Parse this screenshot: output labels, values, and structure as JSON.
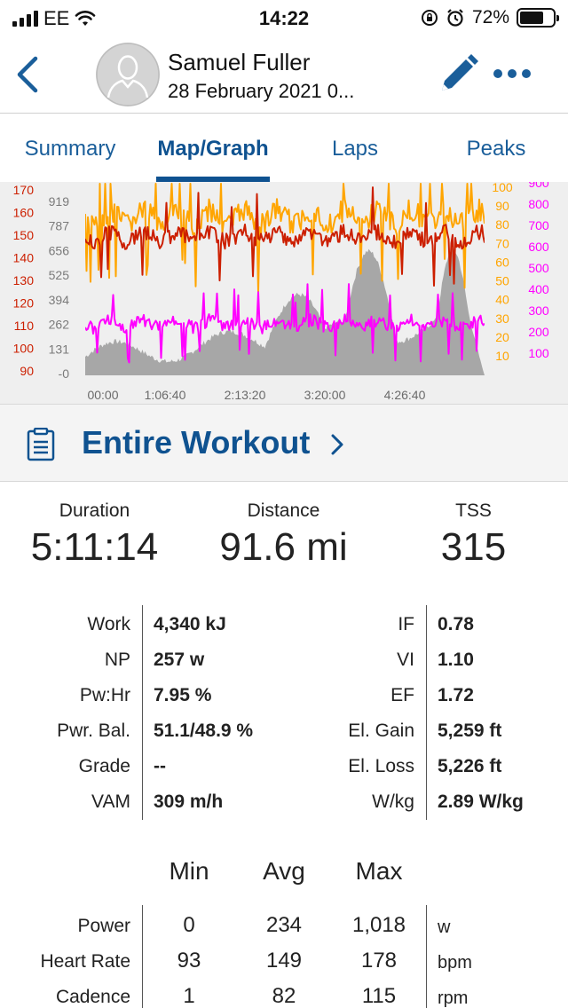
{
  "status_bar": {
    "carrier": "EE",
    "time": "14:22",
    "battery": "72%",
    "battery_level": 0.72
  },
  "header": {
    "athlete_name": "Samuel Fuller",
    "date_line": "28 February 2021   0..."
  },
  "tabs": [
    {
      "label": "Summary"
    },
    {
      "label": "Map/Graph"
    },
    {
      "label": "Laps"
    },
    {
      "label": "Peaks"
    }
  ],
  "chart": {
    "hr_axis": [
      "170",
      "160",
      "150",
      "140",
      "130",
      "120",
      "110",
      "100",
      "90"
    ],
    "elevation_axis": [
      "919",
      "787",
      "656",
      "525",
      "394",
      "262",
      "131",
      "-0"
    ],
    "cadence_axis": [
      "100",
      "90",
      "80",
      "70",
      "60",
      "50",
      "40",
      "30",
      "20",
      "10"
    ],
    "power_axis": [
      "900",
      "800",
      "700",
      "600",
      "500",
      "400",
      "300",
      "200",
      "100"
    ],
    "time_axis": [
      "00:00",
      "1:06:40",
      "2:13:20",
      "3:20:00",
      "4:26:40"
    ],
    "colors": {
      "heart_rate": "#cc1f00",
      "cadence": "#ffa500",
      "power": "#ff00ff",
      "elevation": "#9a9a9a"
    }
  },
  "section": {
    "title": "Entire Workout",
    "icon": "clipboard-icon"
  },
  "summary": [
    {
      "label": "Duration",
      "value": "5:11:14"
    },
    {
      "label": "Distance",
      "value": "91.6 mi"
    },
    {
      "label": "TSS",
      "value": "315"
    }
  ],
  "metrics": [
    {
      "l1": "Work",
      "v1": "4,340 kJ",
      "l2": "IF",
      "v2": "0.78"
    },
    {
      "l1": "NP",
      "v1": "257 w",
      "l2": "VI",
      "v2": "1.10"
    },
    {
      "l1": "Pw:Hr",
      "v1": "7.95 %",
      "l2": "EF",
      "v2": "1.72"
    },
    {
      "l1": "Pwr. Bal.",
      "v1": "51.1/48.9 %",
      "l2": "El. Gain",
      "v2": "5,259 ft"
    },
    {
      "l1": "Grade",
      "v1": "--",
      "l2": "El. Loss",
      "v2": "5,226 ft"
    },
    {
      "l1": "VAM",
      "v1": "309 m/h",
      "l2": "W/kg",
      "v2": "2.89 W/kg"
    }
  ],
  "min_avg_max": {
    "headers": [
      "Min",
      "Avg",
      "Max"
    ],
    "rows": [
      {
        "label": "Power",
        "min": "0",
        "avg": "234",
        "max": "1,018",
        "unit": "w"
      },
      {
        "label": "Heart Rate",
        "min": "93",
        "avg": "149",
        "max": "178",
        "unit": "bpm"
      },
      {
        "label": "Cadence",
        "min": "1",
        "avg": "82",
        "max": "115",
        "unit": "rpm"
      }
    ]
  }
}
